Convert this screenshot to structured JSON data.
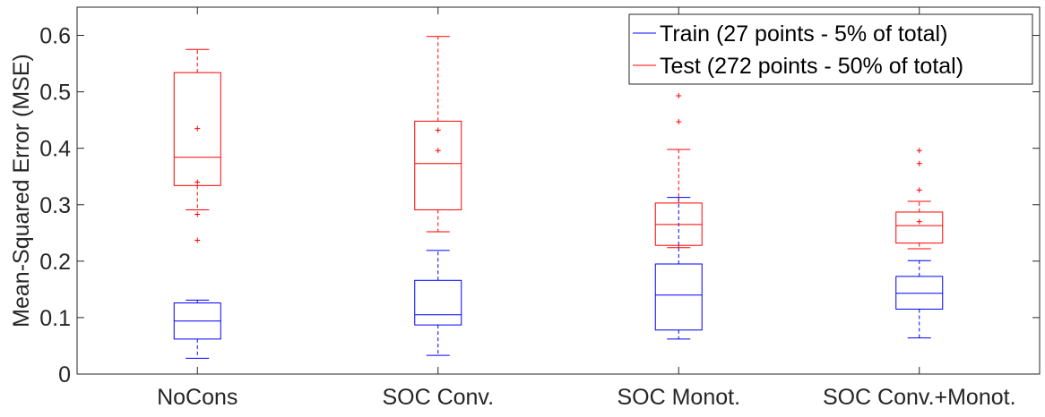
{
  "chart_data": {
    "type": "box",
    "categories": [
      "NoCons",
      "SOC Conv.",
      "SOC Monot.",
      "SOC Conv.+Monot."
    ],
    "ylabel": "Mean-Squared Error (MSE)",
    "xlabel": "",
    "title": "",
    "ylim": [
      0,
      0.65
    ],
    "yticks": [
      0,
      0.1,
      0.2,
      0.3,
      0.4,
      0.5,
      0.6
    ],
    "ytick_labels": [
      "0",
      "0.1",
      "0.2",
      "0.3",
      "0.4",
      "0.5",
      "0.6"
    ],
    "grid": false,
    "legend_position": "top-right",
    "series": [
      {
        "name": "Train (27 points - 5% of total)",
        "color": "#0000ff",
        "boxes": [
          {
            "whisker_low": 0.028,
            "q1": 0.062,
            "median": 0.094,
            "q3": 0.126,
            "whisker_high": 0.131,
            "outliers": []
          },
          {
            "whisker_low": 0.033,
            "q1": 0.087,
            "median": 0.105,
            "q3": 0.166,
            "whisker_high": 0.219,
            "outliers": []
          },
          {
            "whisker_low": 0.062,
            "q1": 0.078,
            "median": 0.14,
            "q3": 0.195,
            "whisker_high": 0.313,
            "outliers": []
          },
          {
            "whisker_low": 0.064,
            "q1": 0.115,
            "median": 0.143,
            "q3": 0.173,
            "whisker_high": 0.201,
            "outliers": []
          }
        ]
      },
      {
        "name": "Test (272 points - 50% of total)",
        "color": "#ff0000",
        "boxes": [
          {
            "whisker_low": 0.291,
            "q1": 0.334,
            "median": 0.384,
            "q3": 0.534,
            "whisker_high": 0.575,
            "outliers": [
              0.237,
              0.283,
              0.34,
              0.435
            ]
          },
          {
            "whisker_low": 0.252,
            "q1": 0.291,
            "median": 0.373,
            "q3": 0.448,
            "whisker_high": 0.598,
            "outliers": [
              0.396,
              0.432
            ]
          },
          {
            "whisker_low": 0.224,
            "q1": 0.228,
            "median": 0.265,
            "q3": 0.303,
            "whisker_high": 0.398,
            "outliers": [
              0.447,
              0.493
            ]
          },
          {
            "whisker_low": 0.222,
            "q1": 0.232,
            "median": 0.263,
            "q3": 0.287,
            "whisker_high": 0.306,
            "outliers": [
              0.27,
              0.326,
              0.373,
              0.396
            ]
          }
        ]
      }
    ]
  }
}
